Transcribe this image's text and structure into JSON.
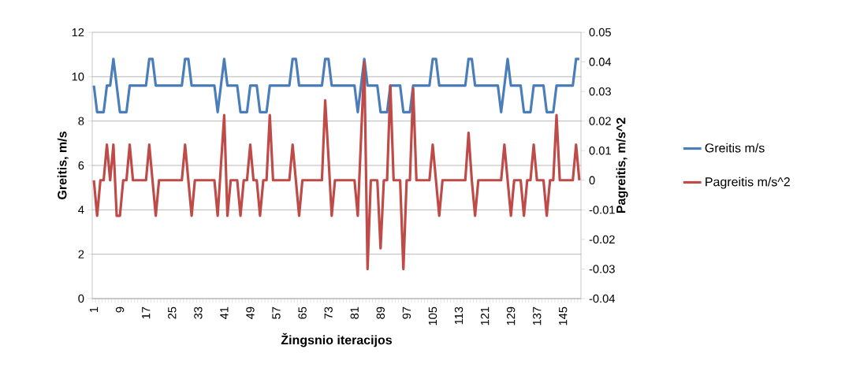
{
  "chart_data": {
    "type": "line",
    "xlabel": "Žingsnio iteracijos",
    "ylabel": "Greitis, m/s",
    "y2label": "Pagreitis, m/s^2",
    "categories": [
      "1",
      null,
      null,
      null,
      null,
      null,
      null,
      null,
      "9",
      null,
      null,
      null,
      null,
      null,
      null,
      null,
      "17",
      null,
      null,
      null,
      null,
      null,
      null,
      null,
      "25",
      null,
      null,
      null,
      null,
      null,
      null,
      null,
      "33",
      null,
      null,
      null,
      null,
      null,
      null,
      null,
      "41",
      null,
      null,
      null,
      null,
      null,
      null,
      null,
      "49",
      null,
      null,
      null,
      null,
      null,
      null,
      null,
      "57",
      null,
      null,
      null,
      null,
      null,
      null,
      null,
      "65",
      null,
      null,
      null,
      null,
      null,
      null,
      null,
      "73",
      null,
      null,
      null,
      null,
      null,
      null,
      null,
      "81",
      null,
      null,
      null,
      null,
      null,
      null,
      null,
      "89",
      null,
      null,
      null,
      null,
      null,
      null,
      null,
      "97",
      null,
      null,
      null,
      null,
      null,
      null,
      null,
      "105",
      null,
      null,
      null,
      null,
      null,
      null,
      null,
      "113",
      null,
      null,
      null,
      null,
      null,
      null,
      null,
      "121",
      null,
      null,
      null,
      null,
      null,
      null,
      null,
      "129",
      null,
      null,
      null,
      null,
      null,
      null,
      null,
      "137",
      null,
      null,
      null,
      null,
      null,
      null,
      null,
      "145",
      null,
      null,
      null,
      null,
      null
    ],
    "series": [
      {
        "name": "Greitis m/s",
        "color": "#4a7ebb",
        "values": [
          9.6,
          8.4,
          8.4,
          8.4,
          9.6,
          9.6,
          10.8,
          9.6,
          8.4,
          8.4,
          8.4,
          9.6,
          9.6,
          9.6,
          9.6,
          9.6,
          9.6,
          10.8,
          10.8,
          9.6,
          9.6,
          9.6,
          9.6,
          9.6,
          9.6,
          9.6,
          9.6,
          9.6,
          10.8,
          10.8,
          9.6,
          9.6,
          9.6,
          9.6,
          9.6,
          9.6,
          9.6,
          9.6,
          8.4,
          9.6,
          10.8,
          9.6,
          9.6,
          9.6,
          9.6,
          8.4,
          8.4,
          8.4,
          9.6,
          9.6,
          9.6,
          8.4,
          8.4,
          8.4,
          9.6,
          9.6,
          9.6,
          9.6,
          9.6,
          9.6,
          9.6,
          10.8,
          10.8,
          9.6,
          9.6,
          9.6,
          9.6,
          9.6,
          9.6,
          9.6,
          9.6,
          10.8,
          10.8,
          9.6,
          9.6,
          9.6,
          9.6,
          9.6,
          9.6,
          9.6,
          9.6,
          8.4,
          9.6,
          10.8,
          9.6,
          9.6,
          9.6,
          9.6,
          8.4,
          8.4,
          8.4,
          9.6,
          9.6,
          9.6,
          9.6,
          8.4,
          8.4,
          8.4,
          9.6,
          9.6,
          9.6,
          9.6,
          9.6,
          9.6,
          10.8,
          10.8,
          9.6,
          9.6,
          9.6,
          9.6,
          9.6,
          9.6,
          9.6,
          9.6,
          9.6,
          10.8,
          10.8,
          9.6,
          9.6,
          9.6,
          9.6,
          9.6,
          9.6,
          9.6,
          9.6,
          8.4,
          9.6,
          10.8,
          9.6,
          9.6,
          9.6,
          9.6,
          8.4,
          8.4,
          8.4,
          9.6,
          9.6,
          9.6,
          9.6,
          8.4,
          8.4,
          8.4,
          9.6,
          9.6,
          9.6,
          9.6,
          9.6,
          9.6,
          10.8,
          10.8
        ]
      },
      {
        "name": "Pagreitis m/s^2",
        "color": "#be4b48",
        "axis": "y2",
        "values": [
          0,
          -0.012,
          0,
          0,
          0.012,
          0,
          0.012,
          -0.012,
          -0.012,
          0,
          0,
          0.012,
          0,
          0,
          0,
          0,
          0,
          0.012,
          0,
          -0.012,
          0,
          0,
          0,
          0,
          0,
          0,
          0,
          0,
          0.012,
          0,
          -0.012,
          0,
          0,
          0,
          0,
          0,
          0,
          0,
          -0.012,
          0.005,
          0.022,
          -0.012,
          0,
          0,
          0,
          -0.012,
          0,
          0,
          0.012,
          0,
          0,
          -0.012,
          0,
          0,
          0.022,
          0,
          0,
          0,
          0,
          0,
          0,
          0.012,
          0,
          -0.012,
          0,
          0,
          0,
          0,
          0,
          0,
          0,
          0.027,
          0.008,
          -0.012,
          0,
          0,
          0,
          0,
          0,
          0,
          0,
          -0.012,
          0.014,
          0.04,
          -0.03,
          0,
          0,
          0,
          -0.023,
          0,
          0,
          0.032,
          0,
          0,
          0,
          -0.03,
          0,
          0,
          0.031,
          0,
          0,
          0,
          0,
          0,
          0.012,
          0,
          -0.012,
          0,
          0,
          0,
          0,
          0,
          0,
          0,
          0,
          0.016,
          0,
          -0.012,
          0,
          0,
          0,
          0,
          0,
          0,
          0,
          0,
          0.012,
          0,
          -0.012,
          0,
          0,
          0,
          -0.012,
          0,
          0,
          0.012,
          0,
          0,
          0,
          -0.012,
          0,
          0,
          0.022,
          0,
          0,
          0,
          0,
          0,
          0.012,
          0
        ]
      }
    ],
    "ylim": [
      0,
      12
    ],
    "yticks": [
      0,
      2,
      4,
      6,
      8,
      10,
      12
    ],
    "y2lim": [
      -0.04,
      0.05
    ],
    "y2ticks": [
      -0.04,
      -0.03,
      -0.02,
      -0.01,
      0,
      0.01,
      0.02,
      0.03,
      0.04,
      0.05
    ],
    "grid": "y",
    "legend": "right",
    "marker": "none",
    "line_style": "solid"
  }
}
